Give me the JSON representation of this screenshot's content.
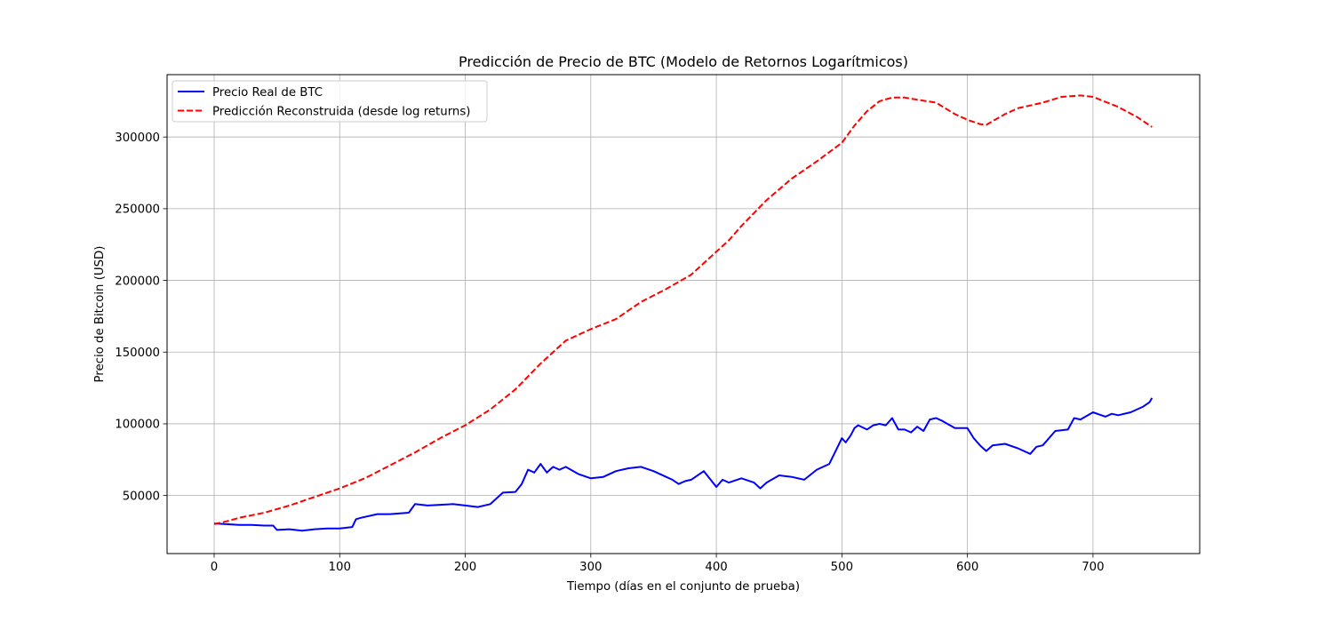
{
  "chart_data": {
    "type": "line",
    "title": "Predicción de Precio de BTC (Modelo de Retornos Logarítmicos)",
    "xlabel": "Tiempo (días en el conjunto de prueba)",
    "ylabel": "Precio de Bitcoin (USD)",
    "xlim": [
      -37.5,
      785
    ],
    "ylim": [
      9500,
      343500
    ],
    "xticks": [
      0,
      100,
      200,
      300,
      400,
      500,
      600,
      700
    ],
    "yticks": [
      50000,
      100000,
      150000,
      200000,
      250000,
      300000
    ],
    "grid": true,
    "legend_position": "top-left",
    "series": [
      {
        "name": "Precio Real de BTC",
        "color": "#0000ff",
        "style": "solid",
        "x": [
          0,
          10,
          20,
          30,
          40,
          47,
          50,
          60,
          70,
          80,
          90,
          100,
          110,
          113,
          117,
          130,
          140,
          155,
          160,
          170,
          180,
          190,
          200,
          210,
          220,
          230,
          240,
          245,
          250,
          255,
          260,
          265,
          270,
          275,
          280,
          290,
          300,
          310,
          320,
          330,
          340,
          350,
          360,
          365,
          370,
          375,
          380,
          390,
          400,
          405,
          410,
          420,
          430,
          435,
          440,
          450,
          460,
          470,
          480,
          490,
          500,
          503,
          507,
          510,
          513,
          520,
          525,
          530,
          535,
          540,
          545,
          550,
          555,
          560,
          565,
          570,
          575,
          580,
          590,
          600,
          605,
          610,
          615,
          620,
          630,
          640,
          650,
          655,
          660,
          670,
          680,
          685,
          690,
          700,
          710,
          715,
          720,
          730,
          740,
          745,
          747
        ],
        "values": [
          30500,
          30000,
          29500,
          29500,
          29000,
          29000,
          26000,
          26500,
          25500,
          26500,
          27000,
          27000,
          28000,
          33500,
          34500,
          37000,
          37000,
          38000,
          44000,
          43000,
          43500,
          44000,
          43000,
          42000,
          44000,
          52000,
          52500,
          58000,
          68000,
          66000,
          72000,
          66000,
          70000,
          68000,
          70000,
          65000,
          62000,
          63000,
          67000,
          69000,
          70000,
          67000,
          63000,
          61000,
          58000,
          60000,
          61000,
          67000,
          56000,
          61000,
          59000,
          62000,
          59000,
          55000,
          59000,
          64000,
          63000,
          61000,
          68000,
          72000,
          90000,
          87000,
          92000,
          97000,
          99000,
          96000,
          99000,
          100000,
          99000,
          104000,
          96000,
          96000,
          94000,
          98000,
          95000,
          103000,
          104000,
          102000,
          97000,
          97000,
          90000,
          85000,
          81000,
          85000,
          86000,
          83000,
          79000,
          84000,
          85000,
          95000,
          96000,
          104000,
          103000,
          108000,
          105000,
          107000,
          106000,
          108000,
          112000,
          115000,
          118000
        ]
      },
      {
        "name": "Predicción Reconstruida (desde log returns)",
        "color": "#ff0000",
        "style": "dashed",
        "x": [
          0,
          10,
          20,
          40,
          60,
          80,
          100,
          120,
          140,
          160,
          180,
          200,
          220,
          240,
          260,
          280,
          290,
          300,
          320,
          340,
          360,
          380,
          400,
          410,
          420,
          440,
          460,
          480,
          500,
          510,
          520,
          530,
          540,
          550,
          560,
          575,
          590,
          600,
          610,
          615,
          620,
          630,
          640,
          660,
          675,
          690,
          700,
          720,
          735,
          747
        ],
        "values": [
          30000,
          32000,
          34500,
          38000,
          43000,
          49000,
          55000,
          62000,
          71000,
          80000,
          90000,
          99000,
          110000,
          124000,
          142000,
          158000,
          162000,
          166000,
          173000,
          185000,
          194000,
          204000,
          220000,
          228000,
          238000,
          256000,
          271000,
          283000,
          296000,
          308000,
          318000,
          325000,
          327500,
          327500,
          326000,
          324000,
          316000,
          312000,
          309000,
          308500,
          311000,
          316000,
          320000,
          324000,
          328000,
          329000,
          328000,
          321000,
          314000,
          307000
        ]
      }
    ]
  }
}
